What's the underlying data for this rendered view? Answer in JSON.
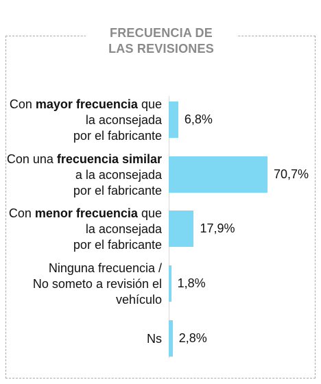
{
  "chart_data": {
    "type": "bar",
    "orientation": "horizontal",
    "title_lines": [
      "FRECUENCIA DE",
      "LAS REVISIONES"
    ],
    "categories": [
      [
        [
          "Con ",
          "mayor frecuencia",
          " que"
        ],
        [
          "la aconsejada"
        ],
        [
          "por el fabricante"
        ]
      ],
      [
        [
          "Con una ",
          "frecuencia similar"
        ],
        [
          "a la aconsejada"
        ],
        [
          "por el fabricante"
        ]
      ],
      [
        [
          "Con ",
          "menor frecuencia",
          " que"
        ],
        [
          "la aconsejada"
        ],
        [
          "por el fabricante"
        ]
      ],
      [
        [
          "Ninguna frecuencia /"
        ],
        [
          "No someto a revisión el"
        ],
        [
          "vehículo"
        ]
      ],
      [
        [
          "Ns"
        ]
      ]
    ],
    "values": [
      6.8,
      70.7,
      17.9,
      1.8,
      2.8
    ],
    "value_labels": [
      "6,8%",
      "70,7%",
      "17,9%",
      "1,8%",
      "2,8%"
    ],
    "xlim": [
      0,
      70.7
    ],
    "bar_color": "#7fd8f3",
    "grid": false,
    "legend": "none"
  }
}
